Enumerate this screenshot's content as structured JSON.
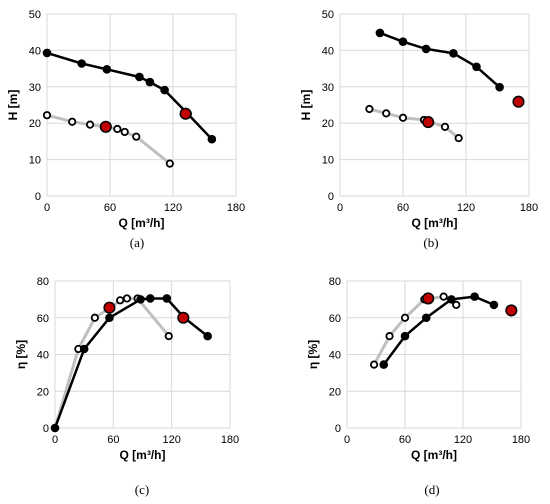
{
  "colors": {
    "curve_a": "#000000",
    "curve_b": "#bfbfbf",
    "highlight": "#c00000",
    "grid": "#d9d9d9"
  },
  "chart_data": [
    {
      "type": "line",
      "panel": "a",
      "caption": "(a)",
      "xlabel": "Q [m³/h]",
      "ylabel": "H [m]",
      "xlim": [
        0,
        180
      ],
      "ylim": [
        0,
        50
      ],
      "xticks": [
        0,
        60,
        120,
        180
      ],
      "yticks": [
        0,
        10,
        20,
        30,
        40,
        50
      ],
      "series": [
        {
          "style": "solid-black",
          "x": [
            0,
            33,
            57,
            88,
            98,
            112,
            134,
            157
          ],
          "y": [
            39.3,
            36.4,
            34.8,
            32.7,
            31.3,
            29.1,
            22.6,
            15.6
          ]
        },
        {
          "style": "open-gray",
          "x": [
            0,
            24,
            41,
            57,
            67,
            74,
            85,
            117
          ],
          "y": [
            22.2,
            20.4,
            19.6,
            19.0,
            18.4,
            17.6,
            16.3,
            8.9
          ]
        }
      ],
      "highlights": [
        {
          "x": 56,
          "y": 19.0
        },
        {
          "x": 132,
          "y": 22.6
        }
      ]
    },
    {
      "type": "line",
      "panel": "b",
      "caption": "(b)",
      "xlabel": "Q [m³/h]",
      "ylabel": "H [m]",
      "xlim": [
        0,
        180
      ],
      "ylim": [
        0,
        50
      ],
      "xticks": [
        0,
        60,
        120,
        180
      ],
      "yticks": [
        0,
        10,
        20,
        30,
        40,
        50
      ],
      "series": [
        {
          "style": "solid-black",
          "x": [
            38,
            60,
            82,
            108,
            130,
            152
          ],
          "y": [
            44.8,
            42.4,
            40.4,
            39.2,
            35.5,
            29.9
          ]
        },
        {
          "style": "open-gray",
          "x": [
            28,
            44,
            60,
            80,
            100,
            113
          ],
          "y": [
            23.9,
            22.7,
            21.5,
            20.9,
            19.0,
            15.9
          ]
        }
      ],
      "highlights": [
        {
          "x": 84,
          "y": 20.3
        },
        {
          "x": 170,
          "y": 25.9
        }
      ]
    },
    {
      "type": "line",
      "panel": "c",
      "caption": "(c)",
      "xlabel": "Q [m³/h]",
      "ylabel": "η [%]",
      "xlim": [
        0,
        180
      ],
      "ylim": [
        0,
        80
      ],
      "xticks": [
        0,
        60,
        120,
        180
      ],
      "yticks": [
        0,
        20,
        40,
        60,
        80
      ],
      "series": [
        {
          "style": "solid-black",
          "x": [
            0,
            30,
            56,
            88,
            98,
            115,
            133,
            157
          ],
          "y": [
            0,
            43,
            60,
            70,
            70.5,
            70.5,
            60,
            50
          ]
        },
        {
          "style": "open-gray",
          "x": [
            0,
            24,
            41,
            57,
            67,
            74,
            85,
            117
          ],
          "y": [
            0,
            43,
            60,
            65.5,
            69.5,
            70.5,
            70.5,
            50
          ]
        }
      ],
      "highlights": [
        {
          "x": 56,
          "y": 65.5
        },
        {
          "x": 132,
          "y": 60
        }
      ]
    },
    {
      "type": "line",
      "panel": "d",
      "caption": "(d)",
      "xlabel": "Q [m³/h]",
      "ylabel": "η [%]",
      "xlim": [
        0,
        180
      ],
      "ylim": [
        0,
        80
      ],
      "xticks": [
        0,
        60,
        120,
        180
      ],
      "yticks": [
        0,
        20,
        40,
        60,
        80
      ],
      "series": [
        {
          "style": "solid-black",
          "x": [
            38,
            60,
            82,
            108,
            132,
            152
          ],
          "y": [
            34.5,
            50,
            60,
            70,
            71.5,
            67
          ]
        },
        {
          "style": "open-gray",
          "x": [
            28,
            44,
            60,
            80,
            100,
            113
          ],
          "y": [
            34.5,
            50,
            60,
            70,
            71.5,
            67
          ]
        }
      ],
      "highlights": [
        {
          "x": 84,
          "y": 70.5
        },
        {
          "x": 170,
          "y": 64
        }
      ]
    }
  ]
}
